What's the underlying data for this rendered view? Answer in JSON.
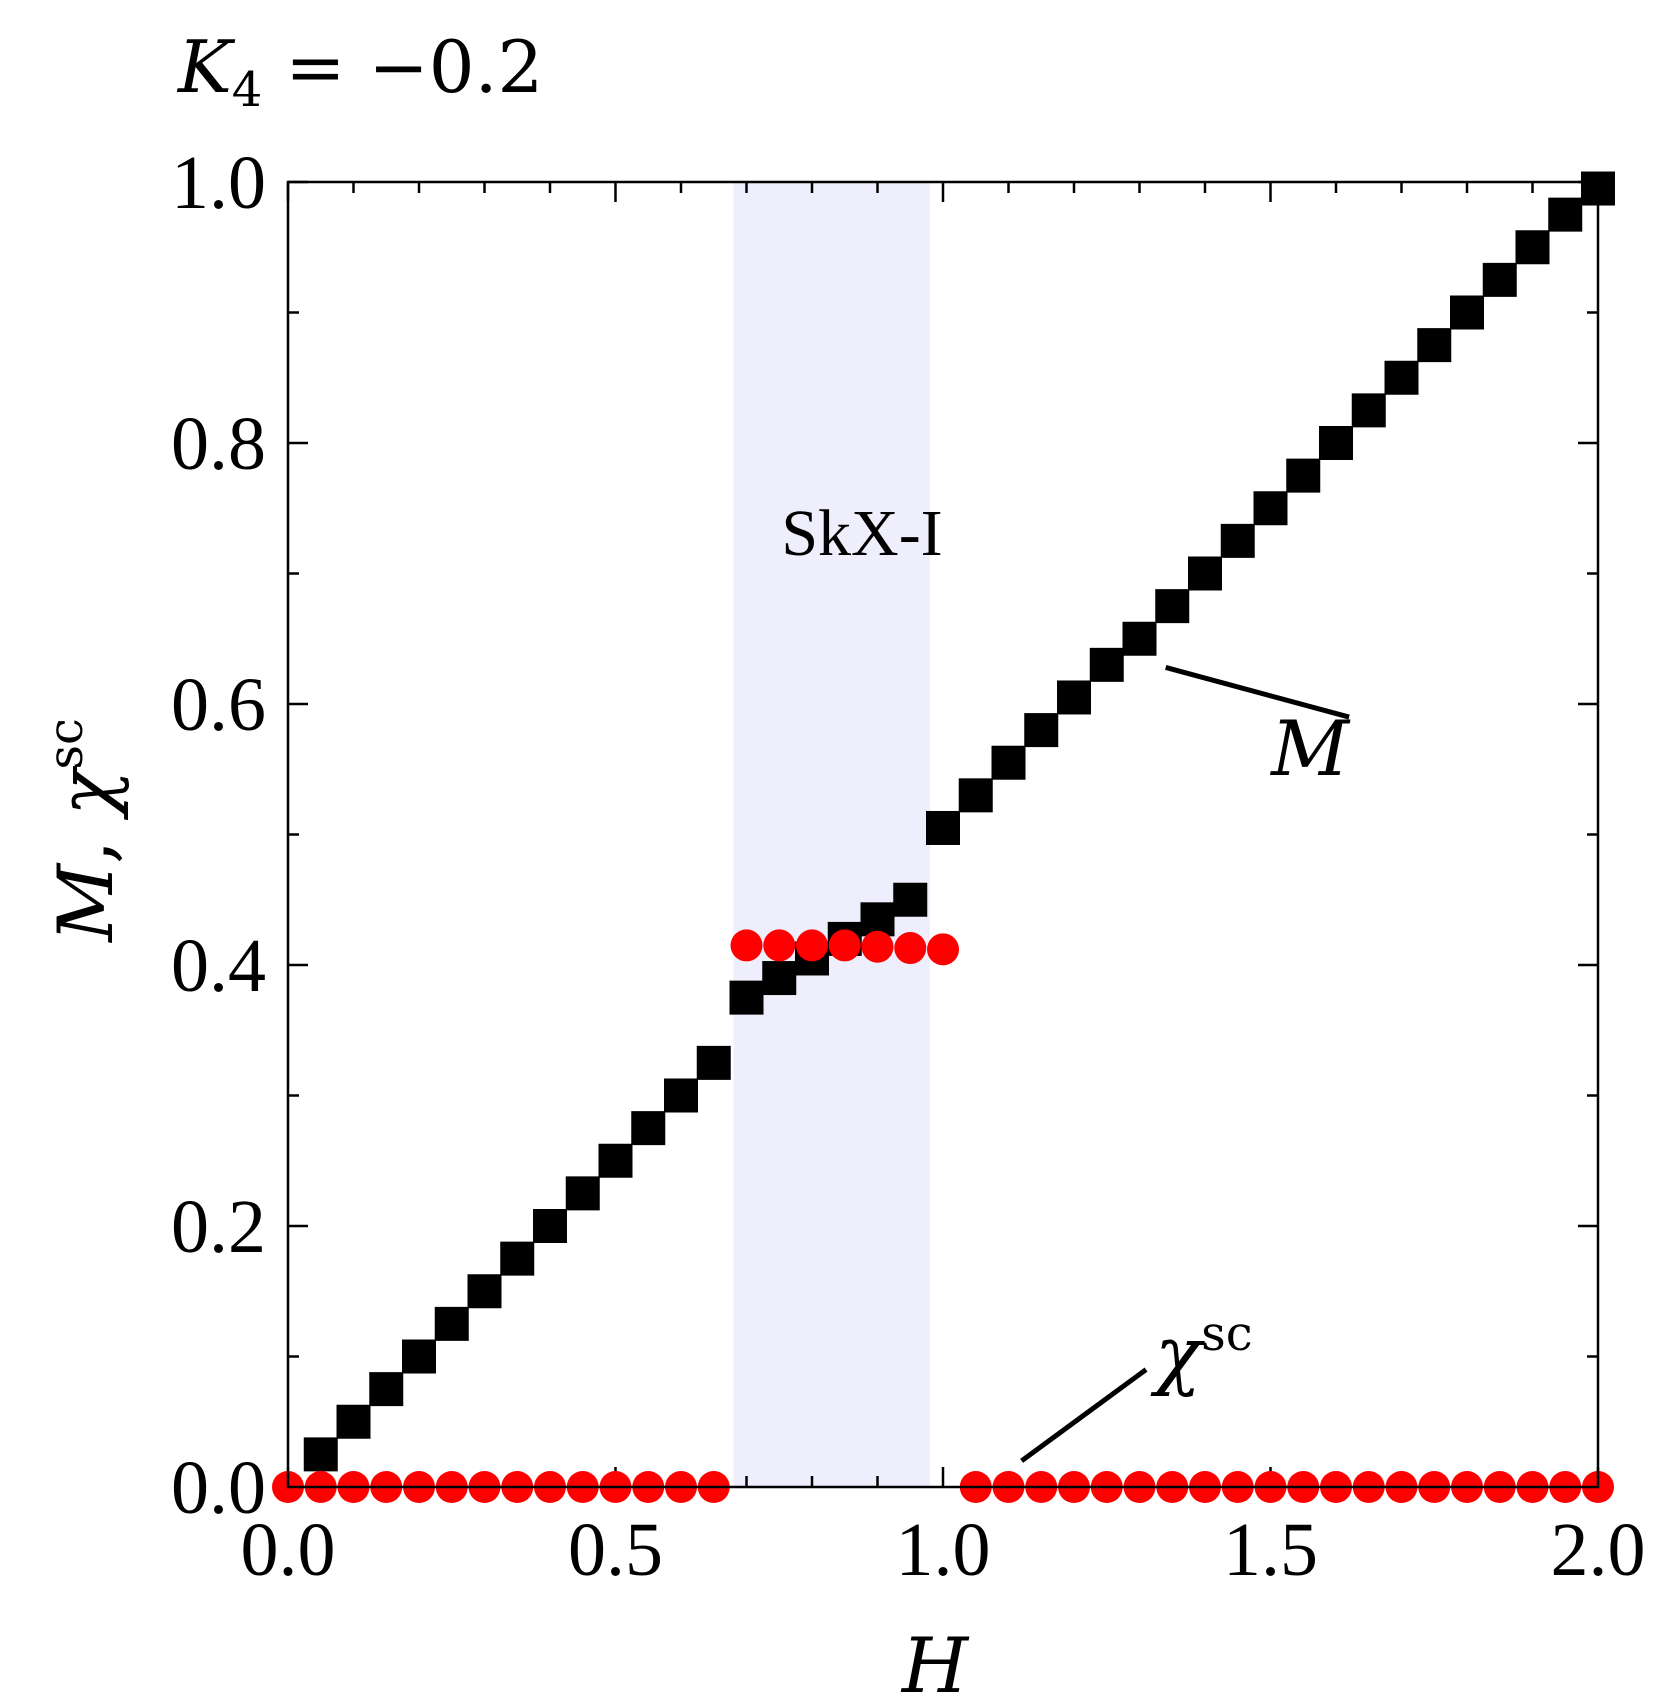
{
  "figure": {
    "title_prefix": "K",
    "title_sub": "4",
    "title_rest": " = −0.2",
    "xlabel": "H",
    "ylabel_M": "M",
    "ylabel_comma": ", ",
    "ylabel_chi": "χ",
    "ylabel_sup": "sc"
  },
  "chart_data": {
    "type": "scatter",
    "xlim": [
      0.0,
      2.0
    ],
    "ylim": [
      0.0,
      1.0
    ],
    "xticks": [
      "0.0",
      "0.5",
      "1.0",
      "1.5",
      "2.0"
    ],
    "yticks": [
      "0.0",
      "0.2",
      "0.4",
      "0.6",
      "0.8",
      "1.0"
    ],
    "xtick_values": [
      0.0,
      0.5,
      1.0,
      1.5,
      2.0
    ],
    "ytick_values": [
      0.0,
      0.2,
      0.4,
      0.6,
      0.8,
      1.0
    ],
    "x_minor_step": 0.1,
    "y_minor_step": 0.1,
    "shaded_region": {
      "label": "SkX-I",
      "x_range": [
        0.68,
        0.98
      ],
      "color": "#eeeefc"
    },
    "series": [
      {
        "name": "M",
        "marker": "square",
        "color": "#000000",
        "x": [
          0.05,
          0.1,
          0.15,
          0.2,
          0.25,
          0.3,
          0.35,
          0.4,
          0.45,
          0.5,
          0.55,
          0.6,
          0.65,
          0.7,
          0.75,
          0.8,
          0.85,
          0.9,
          0.95,
          1.0,
          1.05,
          1.1,
          1.15,
          1.2,
          1.25,
          1.3,
          1.35,
          1.4,
          1.45,
          1.5,
          1.55,
          1.6,
          1.65,
          1.7,
          1.75,
          1.8,
          1.85,
          1.9,
          1.95,
          2.0
        ],
        "y": [
          0.025,
          0.05,
          0.075,
          0.1,
          0.125,
          0.15,
          0.175,
          0.2,
          0.225,
          0.25,
          0.275,
          0.3,
          0.325,
          0.375,
          0.39,
          0.405,
          0.42,
          0.435,
          0.45,
          0.505,
          0.53,
          0.555,
          0.58,
          0.605,
          0.63,
          0.65,
          0.675,
          0.7,
          0.725,
          0.75,
          0.775,
          0.8,
          0.825,
          0.85,
          0.875,
          0.9,
          0.925,
          0.95,
          0.975,
          0.995
        ]
      },
      {
        "name": "χsc",
        "marker": "circle",
        "color": "#ff0000",
        "x": [
          0.0,
          0.05,
          0.1,
          0.15,
          0.2,
          0.25,
          0.3,
          0.35,
          0.4,
          0.45,
          0.5,
          0.55,
          0.6,
          0.65,
          0.7,
          0.75,
          0.8,
          0.85,
          0.9,
          0.95,
          1.0,
          1.05,
          1.1,
          1.15,
          1.2,
          1.25,
          1.3,
          1.35,
          1.4,
          1.45,
          1.5,
          1.55,
          1.6,
          1.65,
          1.7,
          1.75,
          1.8,
          1.85,
          1.9,
          1.95,
          2.0
        ],
        "y": [
          0,
          0,
          0,
          0,
          0,
          0,
          0,
          0,
          0,
          0,
          0,
          0,
          0,
          0,
          0.415,
          0.415,
          0.415,
          0.415,
          0.414,
          0.413,
          0.412,
          0,
          0,
          0,
          0,
          0,
          0,
          0,
          0,
          0,
          0,
          0,
          0,
          0,
          0,
          0,
          0,
          0,
          0,
          0,
          0
        ]
      }
    ],
    "annotations": [
      {
        "name": "M",
        "label": "M",
        "point": [
          1.3,
          0.655
        ]
      },
      {
        "name": "chi",
        "label": "χ",
        "sup": "sc",
        "point": [
          1.12,
          0.02
        ]
      }
    ]
  }
}
